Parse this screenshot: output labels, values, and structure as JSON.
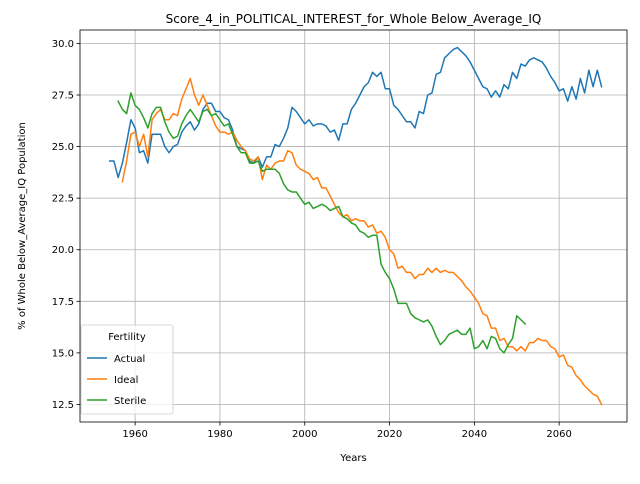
{
  "chart_data": {
    "type": "line",
    "title": "Score_4_in_POLITICAL_INTEREST_for_Whole Below_Average_IQ",
    "xlabel": "Years",
    "ylabel": "% of Whole Below_Average_IQ Population",
    "xlim": [
      1947,
      2076
    ],
    "ylim": [
      11.65,
      30.65
    ],
    "xticks": [
      1960,
      1980,
      2000,
      2020,
      2040,
      2060
    ],
    "yticks": [
      12.5,
      15.0,
      17.5,
      20.0,
      22.5,
      25.0,
      27.5,
      30.0
    ],
    "xtick_labels": [
      "1960",
      "1980",
      "2000",
      "2020",
      "2040",
      "2060"
    ],
    "ytick_labels": [
      "12.5",
      "15.0",
      "17.5",
      "20.0",
      "22.5",
      "25.0",
      "27.5",
      "30.0"
    ],
    "grid": true,
    "legend": {
      "title": "Fertility",
      "placement": "lower-left"
    },
    "series": [
      {
        "name": "Actual",
        "color": "#1f77b4",
        "x": [
          1954,
          1955,
          1956,
          1957,
          1958,
          1959,
          1960,
          1961,
          1962,
          1963,
          1964,
          1965,
          1966,
          1967,
          1968,
          1969,
          1970,
          1971,
          1972,
          1973,
          1974,
          1975,
          1976,
          1977,
          1978,
          1979,
          1980,
          1981,
          1982,
          1983,
          1984,
          1985,
          1986,
          1987,
          1988,
          1989,
          1990,
          1991,
          1992,
          1993,
          1994,
          1995,
          1996,
          1997,
          1998,
          1999,
          2000,
          2001,
          2002,
          2003,
          2004,
          2005,
          2006,
          2007,
          2008,
          2009,
          2010,
          2011,
          2012,
          2013,
          2014,
          2015,
          2016,
          2017,
          2018,
          2019,
          2020,
          2021,
          2022,
          2023,
          2024,
          2025,
          2026,
          2027,
          2028,
          2029,
          2030,
          2031,
          2032,
          2033,
          2034,
          2035,
          2036,
          2037,
          2038,
          2039,
          2040,
          2041,
          2042,
          2043,
          2044,
          2045,
          2046,
          2047,
          2048,
          2049,
          2050,
          2051,
          2052,
          2053,
          2054,
          2055,
          2056,
          2057,
          2058,
          2059,
          2060,
          2061,
          2062,
          2063,
          2064,
          2065,
          2066,
          2067,
          2068,
          2069,
          2070
        ],
        "values": [
          24.3,
          24.3,
          23.5,
          24.2,
          25.2,
          26.3,
          25.9,
          24.7,
          24.8,
          24.2,
          25.6,
          25.6,
          25.6,
          25.0,
          24.7,
          25.0,
          25.1,
          25.7,
          26.0,
          26.2,
          25.8,
          26.1,
          26.8,
          27.1,
          27.1,
          26.7,
          26.7,
          26.4,
          26.3,
          25.8,
          25.0,
          24.9,
          24.8,
          24.3,
          24.2,
          24.5,
          24.0,
          24.5,
          24.5,
          25.1,
          25.0,
          25.4,
          25.9,
          26.9,
          26.7,
          26.4,
          26.1,
          26.3,
          26.0,
          26.1,
          26.1,
          26.0,
          25.7,
          25.8,
          25.3,
          26.1,
          26.1,
          26.8,
          27.1,
          27.5,
          27.9,
          28.1,
          28.6,
          28.4,
          28.6,
          27.8,
          27.8,
          27.0,
          26.8,
          26.5,
          26.2,
          26.2,
          25.9,
          26.7,
          26.6,
          27.5,
          27.6,
          28.5,
          28.6,
          29.3,
          29.5,
          29.7,
          29.8,
          29.6,
          29.4,
          29.1,
          28.7,
          28.3,
          27.9,
          27.8,
          27.4,
          27.7,
          27.4,
          28.0,
          27.8,
          28.6,
          28.3,
          29.0,
          28.9,
          29.2,
          29.3,
          29.2,
          29.1,
          28.8,
          28.4,
          28.1,
          27.7,
          27.8,
          27.2,
          27.9,
          27.3,
          28.3,
          27.6,
          28.7,
          27.9,
          28.7,
          27.9
        ]
      },
      {
        "name": "Ideal",
        "color": "#ff7f0e",
        "x": [
          1957,
          1958,
          1959,
          1960,
          1961,
          1962,
          1963,
          1964,
          1965,
          1966,
          1967,
          1968,
          1969,
          1970,
          1971,
          1972,
          1973,
          1974,
          1975,
          1976,
          1977,
          1978,
          1979,
          1980,
          1981,
          1982,
          1983,
          1984,
          1985,
          1986,
          1987,
          1988,
          1989,
          1990,
          1991,
          1992,
          1993,
          1994,
          1995,
          1996,
          1997,
          1998,
          1999,
          2000,
          2001,
          2002,
          2003,
          2004,
          2005,
          2006,
          2007,
          2008,
          2009,
          2010,
          2011,
          2012,
          2013,
          2014,
          2015,
          2016,
          2017,
          2018,
          2019,
          2020,
          2021,
          2022,
          2023,
          2024,
          2025,
          2026,
          2027,
          2028,
          2029,
          2030,
          2031,
          2032,
          2033,
          2034,
          2035,
          2036,
          2037,
          2038,
          2039,
          2040,
          2041,
          2042,
          2043,
          2044,
          2045,
          2046,
          2047,
          2048,
          2049,
          2050,
          2051,
          2052,
          2053,
          2054,
          2055,
          2056,
          2057,
          2058,
          2059,
          2060,
          2061,
          2062,
          2063,
          2064,
          2065,
          2066,
          2067,
          2068,
          2069,
          2070
        ],
        "values": [
          23.3,
          24.3,
          25.6,
          25.7,
          25.0,
          25.6,
          24.5,
          26.3,
          26.6,
          26.8,
          26.3,
          26.3,
          26.6,
          26.5,
          27.3,
          27.8,
          28.3,
          27.5,
          27.0,
          27.5,
          27.0,
          26.5,
          26.0,
          25.7,
          25.7,
          25.6,
          25.7,
          25.3,
          25.0,
          24.8,
          24.4,
          24.3,
          24.5,
          23.4,
          24.1,
          23.9,
          24.2,
          24.3,
          24.3,
          24.8,
          24.7,
          24.1,
          23.9,
          23.8,
          23.7,
          23.4,
          23.5,
          23.0,
          23.0,
          22.6,
          22.2,
          21.8,
          21.6,
          21.7,
          21.4,
          21.5,
          21.4,
          21.4,
          21.1,
          21.2,
          20.8,
          20.9,
          20.6,
          20.0,
          19.8,
          19.1,
          19.2,
          18.9,
          18.9,
          18.6,
          18.8,
          18.8,
          19.1,
          18.9,
          19.1,
          18.9,
          19.0,
          18.9,
          18.9,
          18.7,
          18.5,
          18.2,
          18.0,
          17.7,
          17.4,
          16.9,
          16.8,
          16.2,
          16.2,
          15.6,
          15.7,
          15.3,
          15.3,
          15.1,
          15.3,
          15.1,
          15.5,
          15.5,
          15.7,
          15.6,
          15.6,
          15.3,
          15.2,
          14.8,
          14.9,
          14.4,
          14.3,
          13.9,
          13.7,
          13.4,
          13.2,
          13.0,
          12.9,
          12.5
        ]
      },
      {
        "name": "Sterile",
        "color": "#2ca02c",
        "x": [
          1956,
          1957,
          1958,
          1959,
          1960,
          1961,
          1962,
          1963,
          1964,
          1965,
          1966,
          1967,
          1968,
          1969,
          1970,
          1971,
          1972,
          1973,
          1974,
          1975,
          1976,
          1977,
          1978,
          1979,
          1980,
          1981,
          1982,
          1983,
          1984,
          1985,
          1986,
          1987,
          1988,
          1989,
          1990,
          1991,
          1992,
          1993,
          1994,
          1995,
          1996,
          1997,
          1998,
          1999,
          2000,
          2001,
          2002,
          2003,
          2004,
          2005,
          2006,
          2007,
          2008,
          2009,
          2010,
          2011,
          2012,
          2013,
          2014,
          2015,
          2016,
          2017,
          2018,
          2019,
          2020,
          2021,
          2022,
          2023,
          2024,
          2025,
          2026,
          2027,
          2028,
          2029,
          2030,
          2031,
          2032,
          2033,
          2034,
          2035,
          2036,
          2037,
          2038,
          2039,
          2040,
          2041,
          2042,
          2043,
          2044,
          2045,
          2046,
          2047,
          2048,
          2049,
          2050,
          2051,
          2052
        ],
        "values": [
          27.2,
          26.8,
          26.6,
          27.6,
          27.0,
          26.8,
          26.4,
          25.9,
          26.6,
          26.9,
          26.9,
          26.2,
          25.7,
          25.4,
          25.5,
          26.1,
          26.5,
          26.8,
          26.5,
          26.2,
          26.7,
          26.8,
          26.5,
          26.6,
          26.3,
          26.0,
          26.1,
          25.6,
          25.0,
          24.7,
          24.7,
          24.2,
          24.2,
          24.3,
          23.8,
          23.9,
          23.9,
          23.9,
          23.7,
          23.2,
          22.9,
          22.8,
          22.8,
          22.5,
          22.2,
          22.3,
          22.0,
          22.1,
          22.2,
          22.1,
          21.9,
          22.0,
          22.1,
          21.6,
          21.5,
          21.3,
          21.2,
          20.9,
          20.8,
          20.6,
          20.7,
          20.7,
          19.3,
          18.9,
          18.6,
          18.1,
          17.4,
          17.4,
          17.4,
          16.9,
          16.7,
          16.6,
          16.5,
          16.6,
          16.3,
          15.8,
          15.4,
          15.6,
          15.9,
          16.0,
          16.1,
          15.9,
          15.9,
          16.2,
          15.2,
          15.3,
          15.6,
          15.2,
          15.8,
          15.7,
          15.2,
          15.0,
          15.4,
          15.7,
          16.8,
          16.6,
          16.4
        ]
      }
    ]
  }
}
